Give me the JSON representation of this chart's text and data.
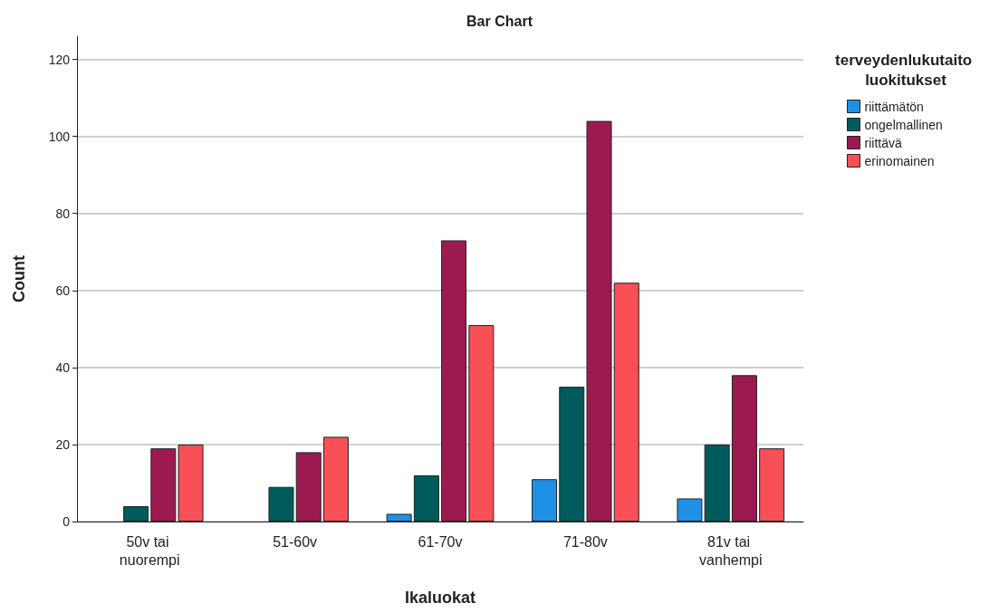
{
  "chart_data": {
    "type": "bar",
    "title": "Bar Chart",
    "xlabel": "Ikaluokat",
    "ylabel": "Count",
    "legend_title": "terveydenlukutaito luokitukset",
    "categories": [
      "50v tai nuorempi",
      "51-60v",
      "61-70v",
      "71-80v",
      "81v tai vanhempi"
    ],
    "series": [
      {
        "name": "riittämätön",
        "color": "#1e90e6",
        "values": [
          null,
          null,
          2,
          11,
          6
        ]
      },
      {
        "name": "ongelmallinen",
        "color": "#005c5c",
        "values": [
          4,
          9,
          12,
          35,
          20
        ]
      },
      {
        "name": "riittävä",
        "color": "#9c1a50",
        "values": [
          19,
          18,
          73,
          104,
          38
        ]
      },
      {
        "name": "erinomainen",
        "color": "#f94f56",
        "values": [
          20,
          22,
          51,
          62,
          19
        ]
      }
    ],
    "ylim": [
      0,
      126
    ],
    "yticks": [
      0,
      20,
      40,
      60,
      80,
      100,
      120
    ],
    "grid": "y",
    "legend": "top right"
  }
}
